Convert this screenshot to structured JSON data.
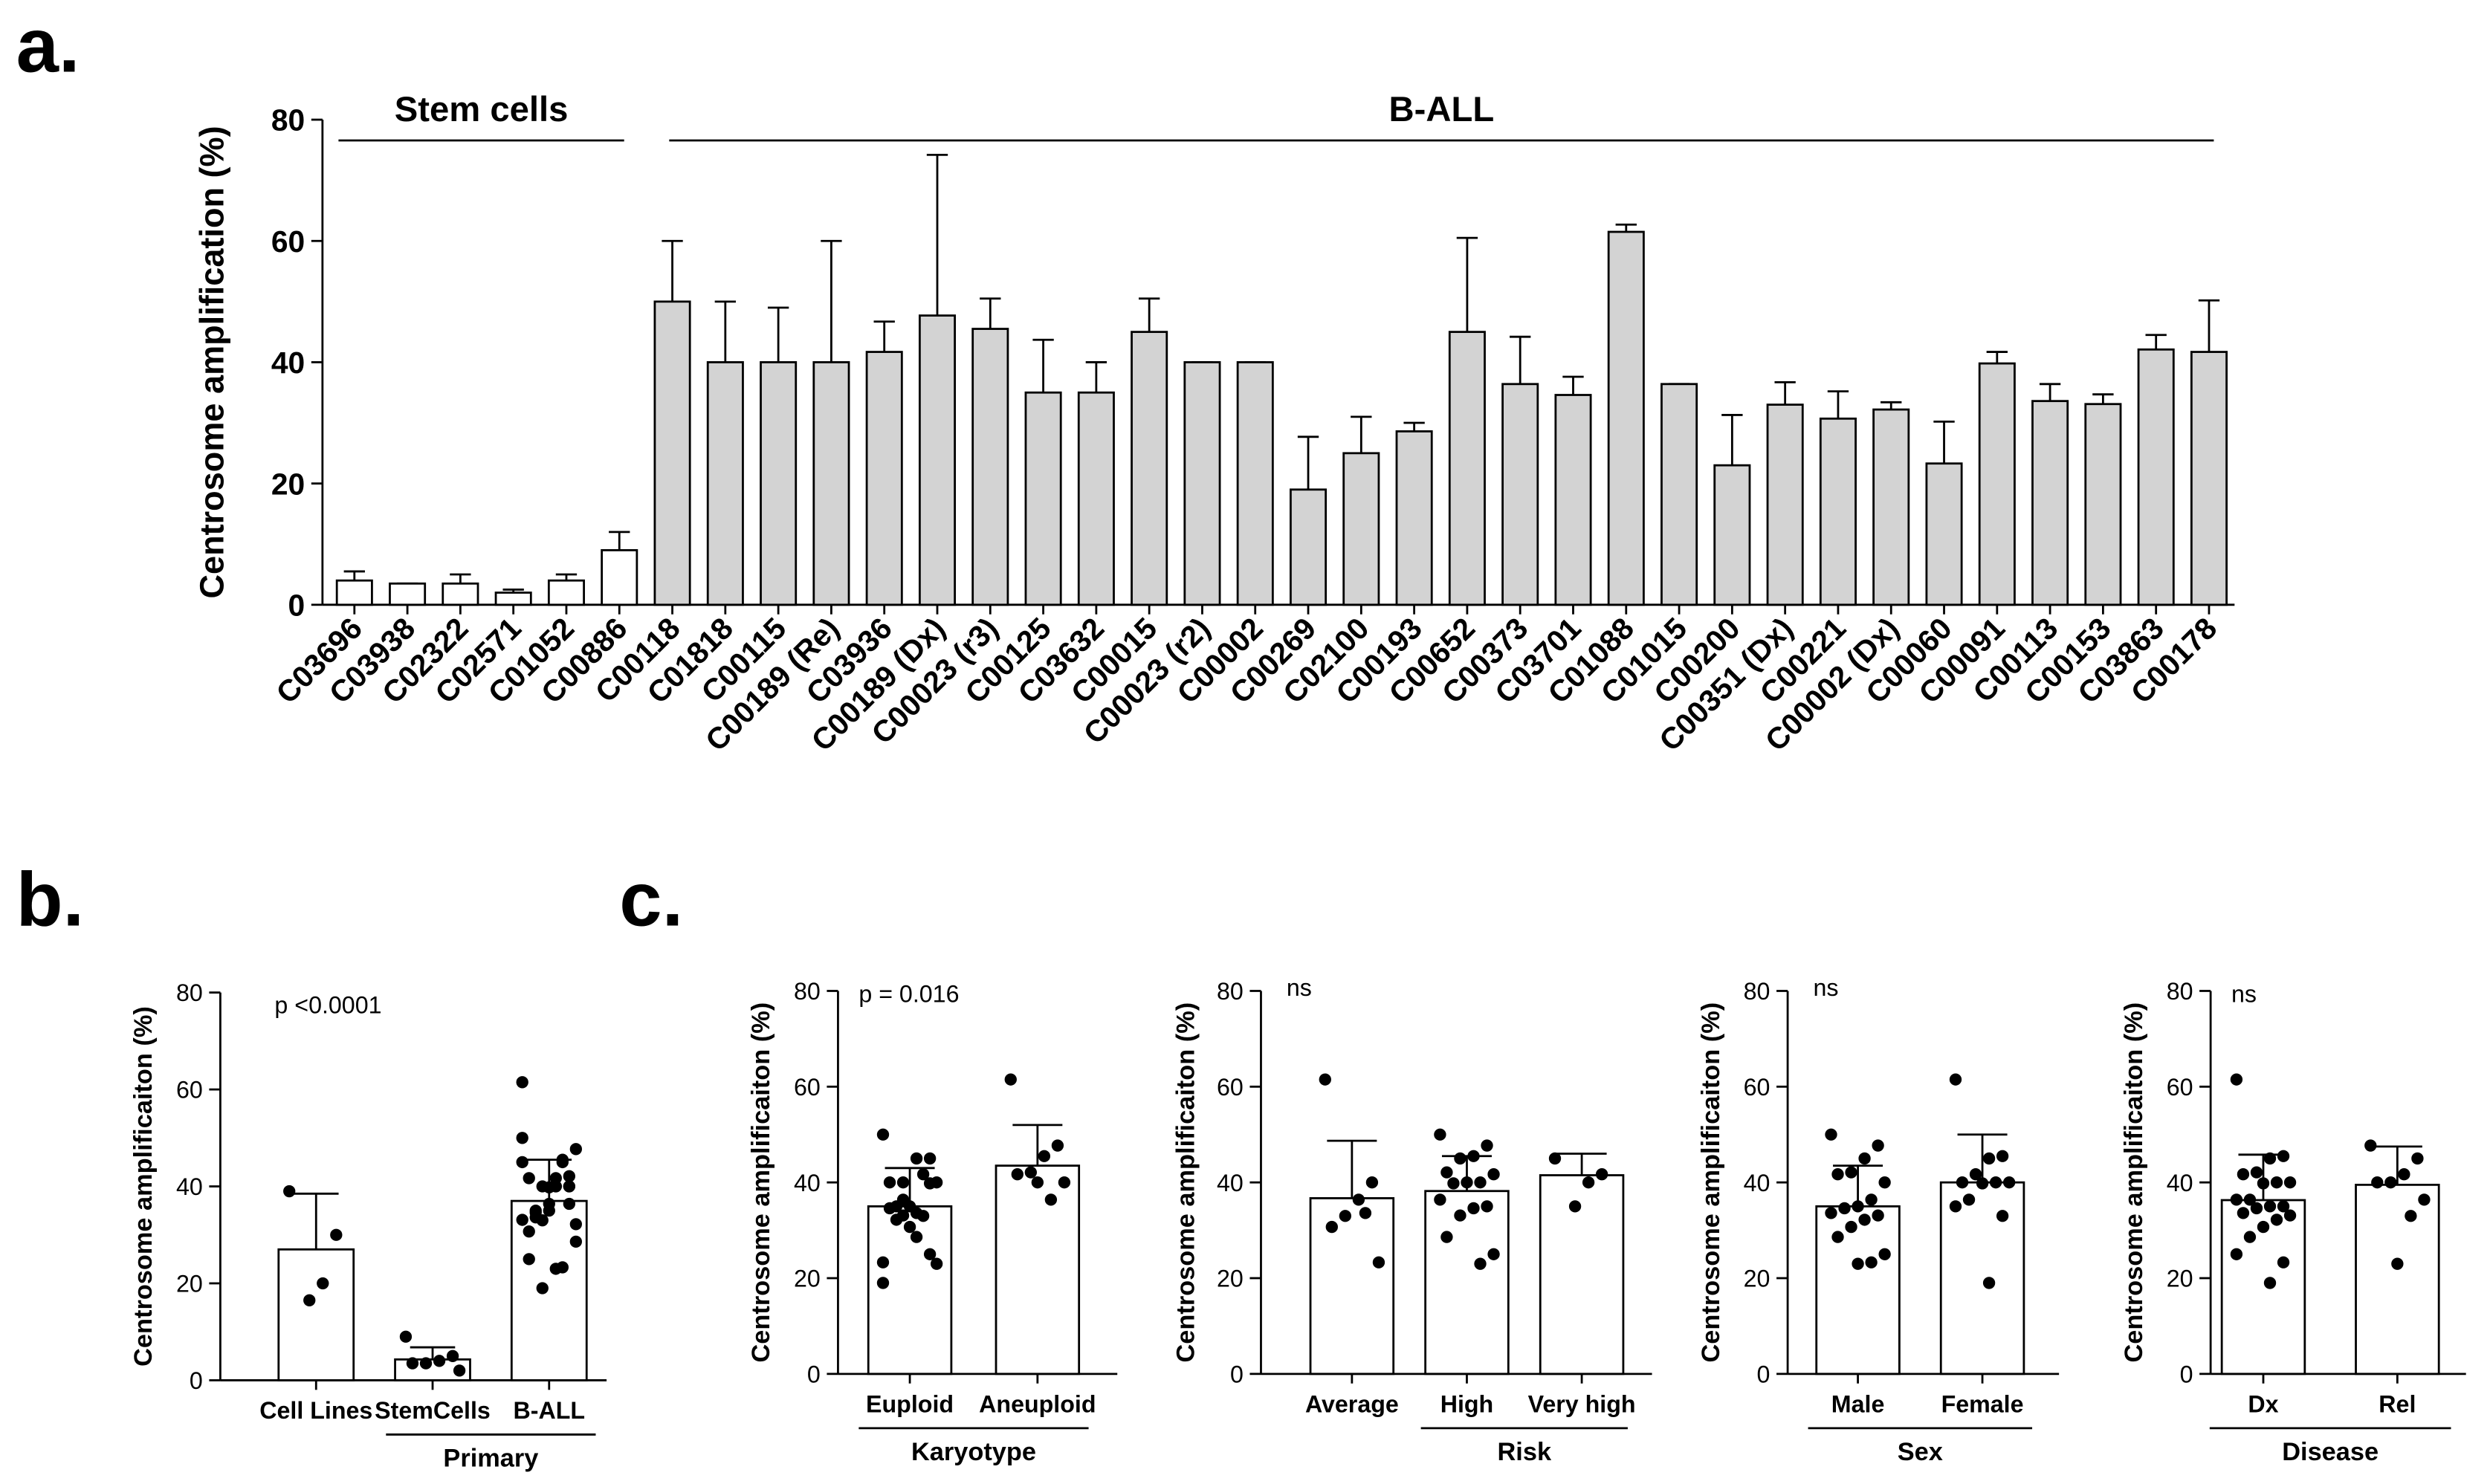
{
  "chart_data": [
    {
      "type": "bar",
      "panel": "a.",
      "ylabel": "Centrosome amplification (%)",
      "categories": [
        "C03696",
        "C03938",
        "C02322",
        "C02571",
        "C01052",
        "C00886",
        "C00118",
        "C01818",
        "C00115",
        "C00189 (Re)",
        "C03936",
        "C00189 (Dx)",
        "C00023 (r3)",
        "C00125",
        "C03632",
        "C00015",
        "C00023 (r2)",
        "C00002",
        "C00269",
        "C02100",
        "C00193",
        "C00652",
        "C00373",
        "C03701",
        "C01088",
        "C01015",
        "C00200",
        "C00351 (Dx)",
        "C00221",
        "C00002 (Dx)",
        "C00060",
        "C00091",
        "C00113",
        "C00153",
        "C03863",
        "C00178"
      ],
      "series": [
        {
          "name": "Stem cells",
          "color": "#ffffff",
          "values": [
            4,
            3.5,
            3.5,
            2,
            4,
            9,
            null,
            null,
            null,
            null,
            null,
            null,
            null,
            null,
            null,
            null,
            null,
            null,
            null,
            null,
            null,
            null,
            null,
            null,
            null,
            null,
            null,
            null,
            null,
            null,
            null,
            null,
            null,
            null,
            null,
            null
          ],
          "errors": [
            1.5,
            0,
            1.5,
            0.5,
            1,
            3,
            null,
            null,
            null,
            null,
            null,
            null,
            null,
            null,
            null,
            null,
            null,
            null,
            null,
            null,
            null,
            null,
            null,
            null,
            null,
            null,
            null,
            null,
            null,
            null,
            null,
            null,
            null,
            null,
            null,
            null
          ]
        },
        {
          "name": "B-ALL",
          "color": "#d3d3d3",
          "values": [
            null,
            null,
            null,
            null,
            null,
            null,
            50,
            40,
            40,
            40,
            41.7,
            47.7,
            45.5,
            35,
            35,
            45,
            40,
            40,
            19,
            25,
            28.6,
            45,
            36.4,
            34.6,
            61.5,
            36.4,
            23,
            33,
            30.7,
            32.2,
            23.3,
            39.8,
            33.6,
            33.1,
            42.1,
            41.7
          ],
          "errors": [
            null,
            null,
            null,
            null,
            null,
            null,
            10,
            10,
            9,
            20,
            5,
            26.5,
            5,
            8.7,
            5,
            5.5,
            0,
            0,
            8.7,
            6,
            1.4,
            15.5,
            7.8,
            3,
            1.2,
            0,
            8.3,
            3.7,
            4.5,
            1.2,
            6.9,
            1.9,
            2.8,
            1.6,
            2.4,
            8.5
          ]
        }
      ],
      "ylim": [
        0,
        80
      ],
      "yticks": [
        0,
        20,
        40,
        60,
        80
      ]
    },
    {
      "type": "bar",
      "panel": "b.",
      "ylabel": "Centrosome amplificaiton (%)",
      "annotation": "p <0.0001",
      "categories": [
        "Cell Lines",
        "StemCells",
        "B-ALL"
      ],
      "color": "#ffffff",
      "values": [
        27,
        4.3,
        37
      ],
      "errors": [
        11.5,
        2.5,
        8.5
      ],
      "points": [
        [
          39,
          30,
          20,
          16.5
        ],
        [
          9,
          5,
          4,
          3.5,
          3.5,
          2
        ],
        [
          50,
          40,
          40,
          40,
          41.7,
          47.7,
          45.5,
          35,
          35,
          45,
          40,
          40,
          19,
          25,
          28.6,
          45,
          36.4,
          34.6,
          61.5,
          36.4,
          23,
          33,
          30.7,
          32.2,
          23.3,
          39.8,
          33.6,
          33.1,
          42.1,
          41.7
        ]
      ],
      "groups": [
        {
          "label": "Primary",
          "categories": [
            "StemCells",
            "B-ALL"
          ]
        }
      ],
      "ylim": [
        0,
        80
      ],
      "yticks": [
        0,
        20,
        40,
        60,
        80
      ]
    },
    {
      "type": "bar",
      "panel": "c.",
      "ylabel": "Centrosome amplificaiton (%)",
      "annotation": "p = 0.016",
      "categories": [
        "Euploid",
        "Aneuploid"
      ],
      "color": "#ffffff",
      "values": [
        35,
        43.5
      ],
      "errors": [
        8,
        8.5
      ],
      "points": [
        [
          50,
          45,
          45,
          40,
          40,
          40,
          41.7,
          35,
          35,
          19,
          25,
          28.6,
          36.4,
          34.6,
          23,
          33,
          30.7,
          32.2,
          23.3,
          39.8,
          33.6,
          33.1
        ],
        [
          61.5,
          47.7,
          45.5,
          42.1,
          41.7,
          40,
          36.4,
          40
        ]
      ],
      "groups": [
        {
          "label": "Karyotype",
          "categories": [
            "Euploid",
            "Aneuploid"
          ]
        }
      ],
      "ylim": [
        0,
        80
      ],
      "yticks": [
        0,
        20,
        40,
        60,
        80
      ]
    },
    {
      "type": "bar",
      "ylabel": "Centrosome amplificaiton (%)",
      "annotation": "ns",
      "categories": [
        "Average",
        "High",
        "Very high"
      ],
      "color": "#ffffff",
      "values": [
        36.7,
        38.2,
        41.5
      ],
      "errors": [
        12,
        7.3,
        4.5
      ],
      "points": [
        [
          61.5,
          40,
          36.4,
          33,
          30.7,
          23.3,
          33.6
        ],
        [
          50,
          47.7,
          45.5,
          45,
          42.1,
          41.7,
          40,
          40,
          39.8,
          36.4,
          35,
          34.6,
          33.1,
          28.6,
          25,
          23
        ],
        [
          45,
          41.7,
          40,
          35
        ]
      ],
      "groups": [
        {
          "label": "Risk",
          "categories": [
            "High",
            "Very high"
          ]
        }
      ],
      "ylim": [
        0,
        80
      ],
      "yticks": [
        0,
        20,
        40,
        60,
        80
      ]
    },
    {
      "type": "bar",
      "ylabel": "Centrosome amplificaiton (%)",
      "annotation": "ns",
      "categories": [
        "Male",
        "Female"
      ],
      "color": "#ffffff",
      "values": [
        35,
        40
      ],
      "errors": [
        8.5,
        10
      ],
      "points": [
        [
          50,
          47.7,
          45,
          42.1,
          41.7,
          40,
          36.4,
          35,
          34.6,
          33.6,
          33.1,
          32.2,
          30.7,
          28.6,
          25,
          23.3,
          23
        ],
        [
          61.5,
          45.5,
          45,
          41.7,
          40,
          40,
          40,
          39.8,
          36.4,
          35,
          33,
          19
        ]
      ],
      "groups": [
        {
          "label": "Sex",
          "categories": [
            "Male",
            "Female"
          ]
        }
      ],
      "ylim": [
        0,
        80
      ],
      "yticks": [
        0,
        20,
        40,
        60,
        80
      ]
    },
    {
      "type": "bar",
      "ylabel": "Centrosome amplificaiton (%)",
      "annotation": "ns",
      "categories": [
        "Dx",
        "Rel"
      ],
      "color": "#ffffff",
      "values": [
        36.3,
        39.5
      ],
      "errors": [
        9.5,
        8
      ],
      "points": [
        [
          61.5,
          45.5,
          45,
          42.1,
          41.7,
          40,
          40,
          39.8,
          36.4,
          36.4,
          35,
          35,
          34.6,
          33.6,
          33.1,
          32.2,
          30.7,
          28.6,
          25,
          23.3,
          19
        ],
        [
          47.7,
          45,
          41.7,
          40,
          40,
          36.4,
          33,
          23
        ]
      ],
      "groups": [
        {
          "label": "Disease",
          "categories": [
            "Dx",
            "Rel"
          ]
        }
      ],
      "ylim": [
        0,
        80
      ],
      "yticks": [
        0,
        20,
        40,
        60,
        80
      ]
    }
  ]
}
